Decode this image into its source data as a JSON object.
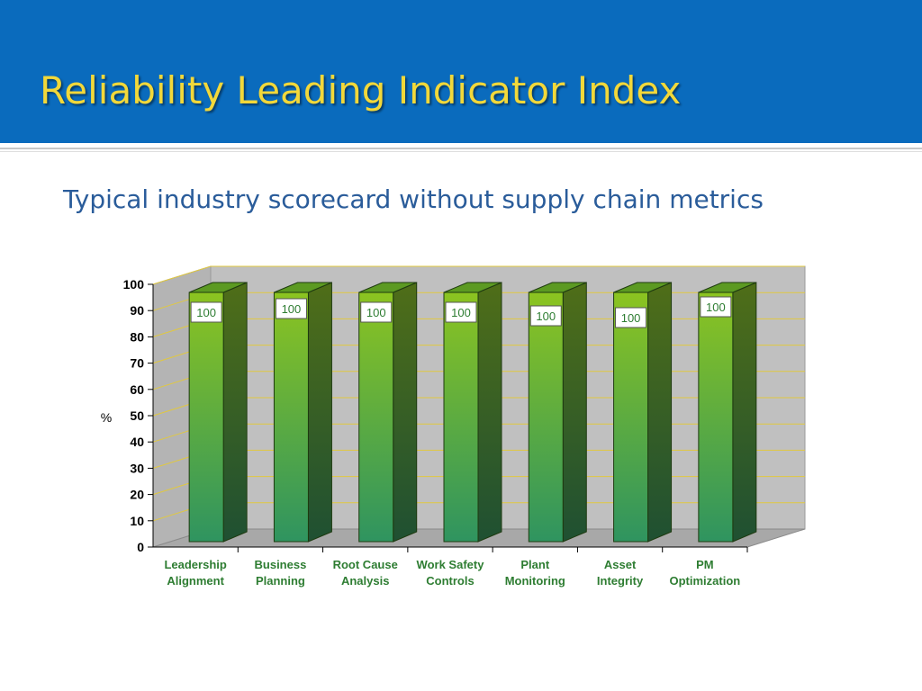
{
  "slide": {
    "title": "Reliability Leading Indicator Index",
    "subtitle": "Typical industry scorecard without supply chain metrics"
  },
  "colors": {
    "title_bar": "#0a6bbd",
    "title_text": "#f2d83a",
    "subtitle_text": "#2a5c9a",
    "bar_top": "#8cc420",
    "bar_bottom": "#2f9460",
    "bar_side": "#3f6f1c",
    "category_label": "#2e7d32",
    "data_label": "#2e7d32",
    "plot_wall": "#c0c0c0",
    "gridline": "#e0c840"
  },
  "chart_data": {
    "type": "bar",
    "style": "3d-column",
    "title": "",
    "xlabel": "",
    "ylabel": "%",
    "ylim": [
      0,
      100
    ],
    "yticks": [
      0,
      10,
      20,
      30,
      40,
      50,
      60,
      70,
      80,
      90,
      100
    ],
    "categories": [
      [
        "Leadership",
        "Alignment"
      ],
      [
        "Business",
        "Planning"
      ],
      [
        "Root Cause",
        "Analysis"
      ],
      [
        "Work Safety",
        "Controls"
      ],
      [
        "Plant",
        "Monitoring"
      ],
      [
        "Asset",
        "Integrity"
      ],
      [
        "PM",
        "Optimization"
      ]
    ],
    "values": [
      100,
      100,
      100,
      100,
      100,
      100,
      100
    ],
    "data_labels": [
      "100",
      "100",
      "100",
      "100",
      "100",
      "100",
      "100"
    ],
    "grid": true,
    "legend": "none"
  }
}
